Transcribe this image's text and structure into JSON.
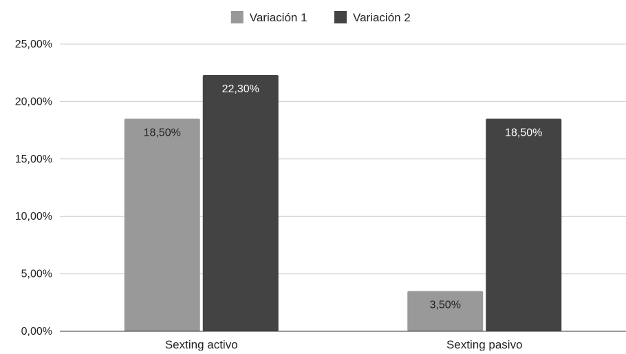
{
  "chart_data": {
    "type": "bar",
    "title": "",
    "xlabel": "",
    "ylabel": "",
    "categories": [
      "Sexting activo",
      "Sexting pasivo"
    ],
    "series": [
      {
        "name": "Variación 1",
        "color": "#999999",
        "label_color": "#222222",
        "values": [
          18.5,
          3.5
        ],
        "labels": [
          "18,50%",
          "3,50%"
        ]
      },
      {
        "name": "Variación 2",
        "color": "#434343",
        "label_color": "#ffffff",
        "values": [
          22.3,
          18.5
        ],
        "labels": [
          "22,30%",
          "18,50%"
        ]
      }
    ],
    "ylim": [
      0,
      25
    ],
    "yticks": [
      {
        "value": 0,
        "label": "0,00%"
      },
      {
        "value": 5,
        "label": "5,00%"
      },
      {
        "value": 10,
        "label": "10,00%"
      },
      {
        "value": 15,
        "label": "15,00%"
      },
      {
        "value": 20,
        "label": "20,00%"
      },
      {
        "value": 25,
        "label": "25,00%"
      }
    ],
    "grid": true,
    "legend_position": "top-center"
  }
}
